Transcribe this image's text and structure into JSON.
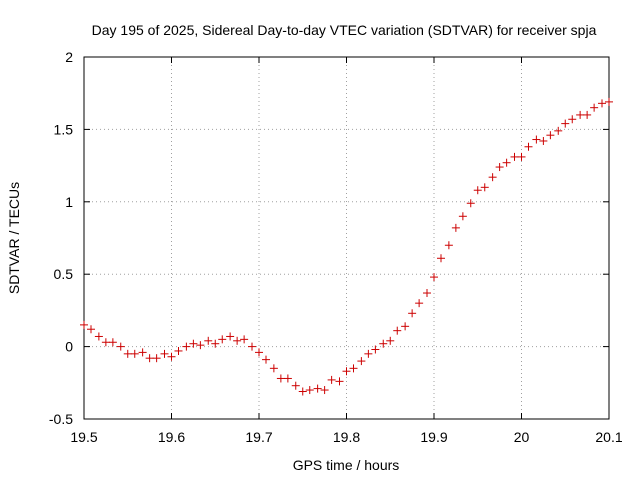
{
  "chart_data": {
    "type": "scatter",
    "title": "Day 195 of 2025, Sidereal Day-to-day VTEC variation (SDTVAR) for receiver spja",
    "xlabel": "GPS time / hours",
    "ylabel": "SDTVAR / TECUs",
    "xlim": [
      19.5,
      20.1
    ],
    "ylim": [
      -0.5,
      2
    ],
    "x_ticks": [
      19.5,
      19.6,
      19.7,
      19.8,
      19.9,
      20,
      20.1
    ],
    "x_tick_labels": [
      "19.5",
      "19.6",
      "19.7",
      "19.8",
      "19.9",
      "20",
      "20.1"
    ],
    "y_ticks": [
      -0.5,
      0,
      0.5,
      1,
      1.5,
      2
    ],
    "y_tick_labels": [
      "-0.5",
      "0",
      "0.5",
      "1",
      "1.5",
      "2"
    ],
    "grid": true,
    "marker": "+",
    "marker_color": "#cc0000",
    "series": [
      {
        "name": "SDTVAR",
        "x": [
          19.5,
          19.508,
          19.517,
          19.525,
          19.533,
          19.542,
          19.55,
          19.558,
          19.567,
          19.575,
          19.583,
          19.592,
          19.6,
          19.608,
          19.617,
          19.625,
          19.633,
          19.642,
          19.65,
          19.658,
          19.667,
          19.675,
          19.683,
          19.692,
          19.7,
          19.708,
          19.717,
          19.725,
          19.733,
          19.742,
          19.75,
          19.758,
          19.767,
          19.775,
          19.783,
          19.792,
          19.8,
          19.808,
          19.817,
          19.825,
          19.833,
          19.842,
          19.85,
          19.858,
          19.867,
          19.875,
          19.883,
          19.892,
          19.9,
          19.908,
          19.917,
          19.925,
          19.933,
          19.942,
          19.95,
          19.958,
          19.967,
          19.975,
          19.983,
          19.992,
          20.0,
          20.008,
          20.017,
          20.025,
          20.033,
          20.042,
          20.05,
          20.058,
          20.067,
          20.075,
          20.083,
          20.092,
          20.1
        ],
        "y": [
          0.15,
          0.12,
          0.07,
          0.03,
          0.03,
          0.0,
          -0.05,
          -0.05,
          -0.04,
          -0.08,
          -0.08,
          -0.05,
          -0.07,
          -0.03,
          0.0,
          0.02,
          0.01,
          0.04,
          0.02,
          0.05,
          0.07,
          0.04,
          0.05,
          0.0,
          -0.04,
          -0.09,
          -0.15,
          -0.22,
          -0.22,
          -0.27,
          -0.31,
          -0.3,
          -0.29,
          -0.3,
          -0.23,
          -0.24,
          -0.17,
          -0.15,
          -0.1,
          -0.05,
          -0.02,
          0.02,
          0.04,
          0.11,
          0.14,
          0.23,
          0.3,
          0.37,
          0.48,
          0.61,
          0.7,
          0.82,
          0.9,
          0.99,
          1.08,
          1.1,
          1.17,
          1.24,
          1.27,
          1.31,
          1.31,
          1.38,
          1.43,
          1.42,
          1.46,
          1.49,
          1.54,
          1.57,
          1.6,
          1.6,
          1.65,
          1.68,
          1.69
        ]
      }
    ]
  }
}
